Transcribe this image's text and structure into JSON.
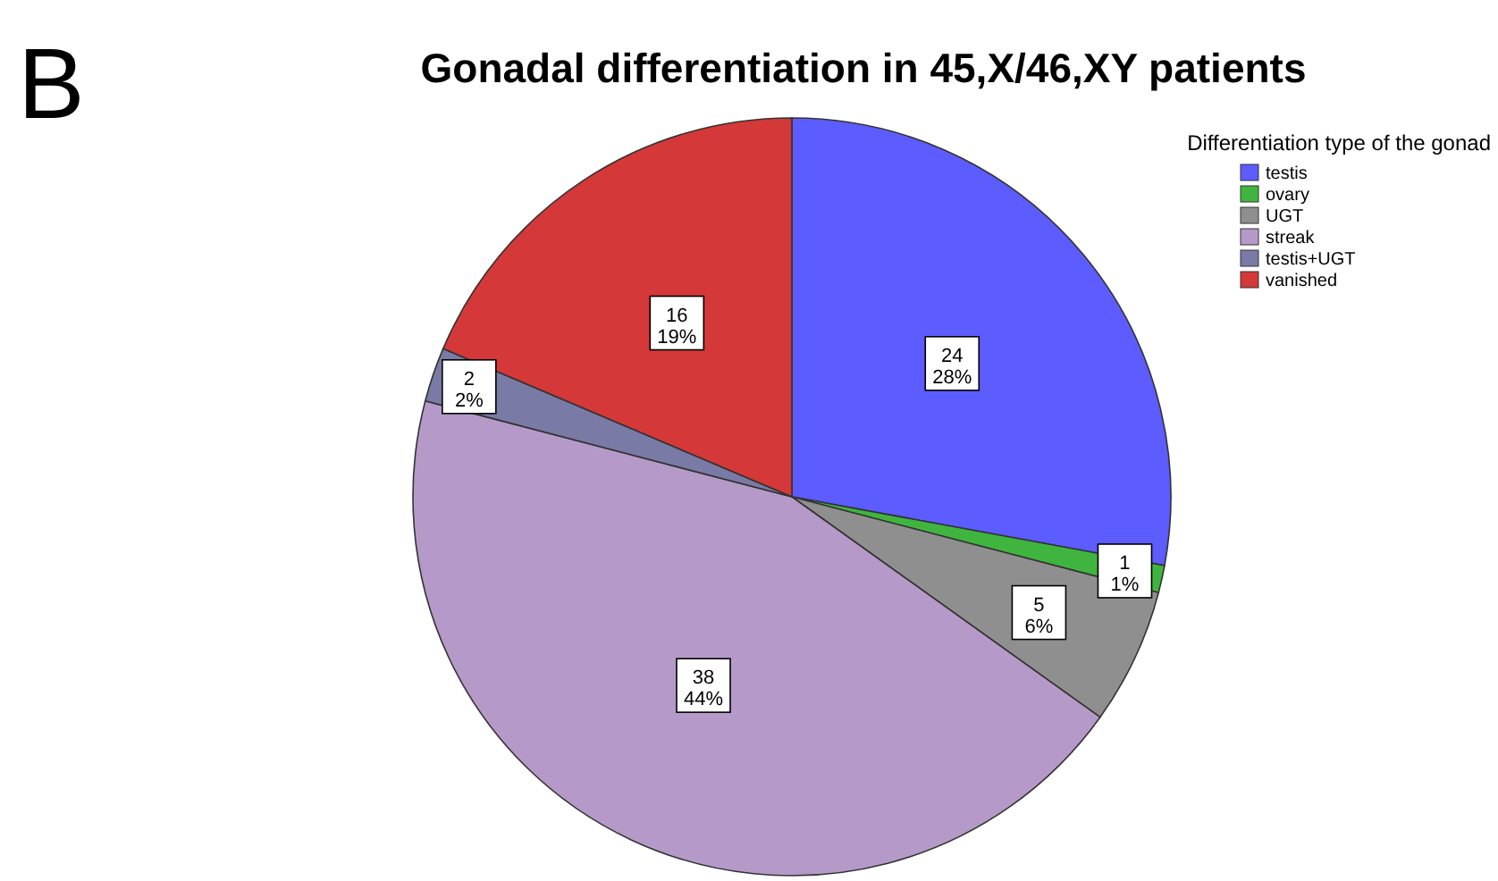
{
  "chart_data": {
    "type": "pie",
    "title": "Gonadal differentiation in 45,X/46,XY patients",
    "annotations": [
      "B"
    ],
    "legend_title": "Differentiation type of the gonad",
    "legend": "top right",
    "categories": [
      "testis",
      "ovary",
      "UGT",
      "streak",
      "testis+UGT",
      "vanished"
    ],
    "values": [
      24,
      1,
      5,
      38,
      2,
      16
    ],
    "colors": [
      "#5c5cff",
      "#3fb53f",
      "#8f8f8f",
      "#b59ac9",
      "#7a7aa6",
      "#d43838"
    ],
    "value_labels": [
      "24\n28%",
      "1\n1%",
      "5\n6%",
      "38\n44%",
      "2\n2%",
      "16\n19%"
    ]
  }
}
